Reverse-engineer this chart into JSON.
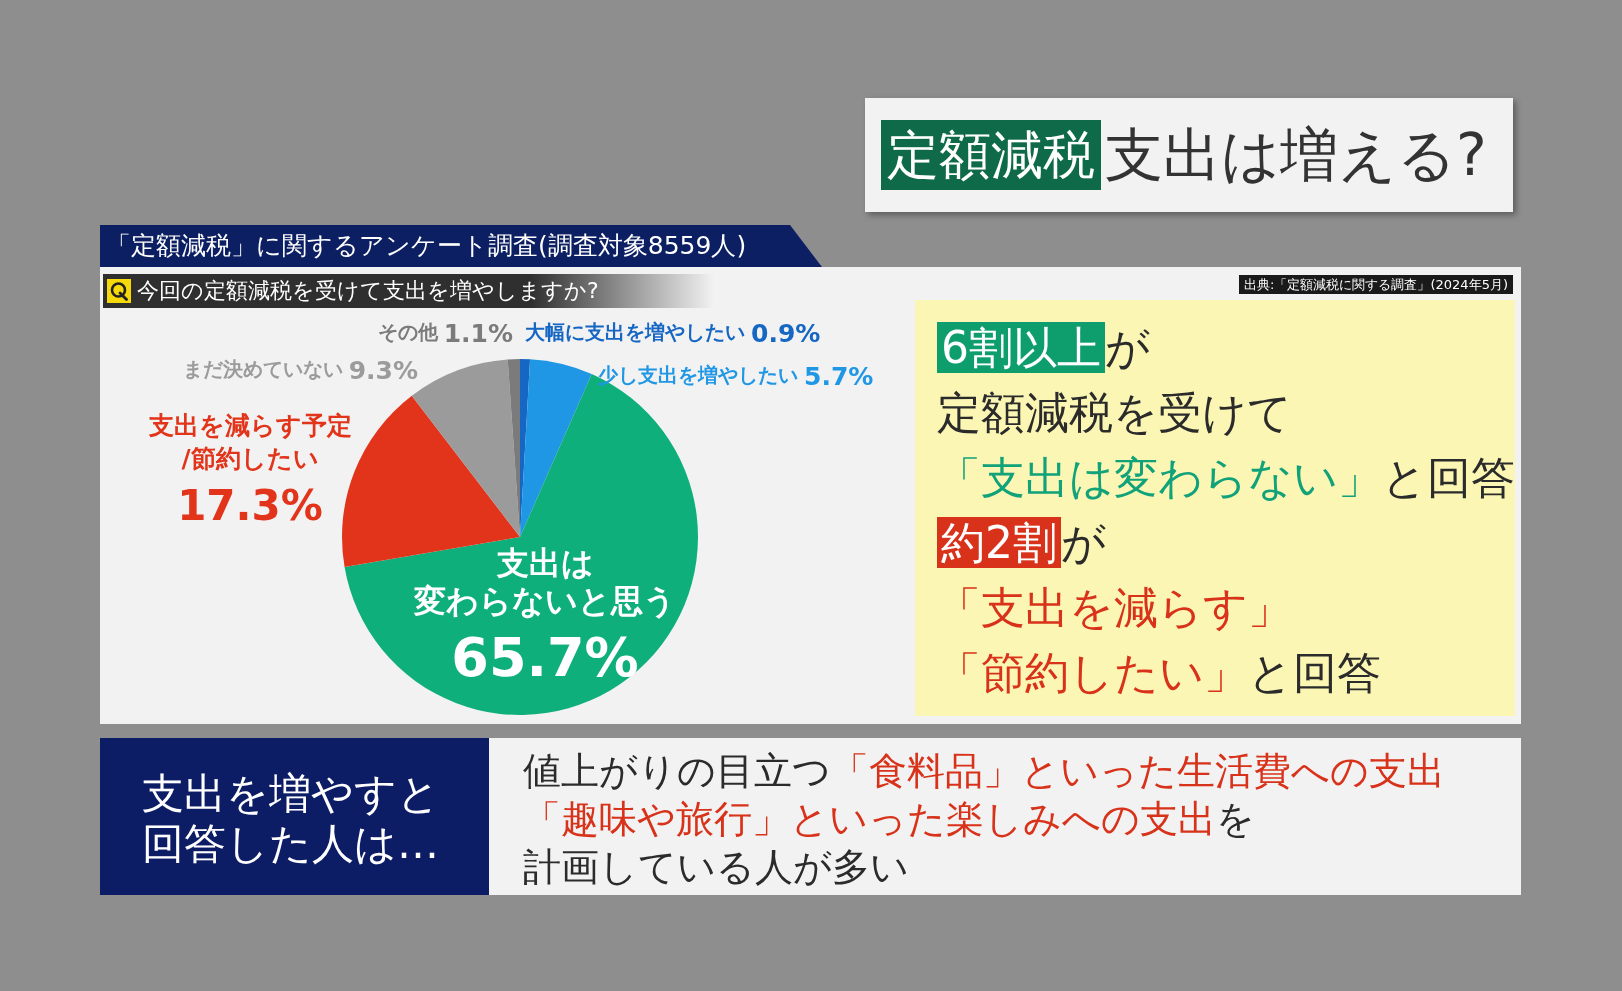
{
  "chart_data": {
    "type": "pie",
    "title": "「定額減税」に関するアンケート調査(調査対象8559人)",
    "subtitle": "今回の定額減税を受けて支出を増やしますか?",
    "categories": [
      "大幅に支出を増やしたい",
      "少し支出を増やしたい",
      "支出は変わらないと思う",
      "支出を減らす予定/節約したい",
      "まだ決めていない",
      "その他"
    ],
    "values": [
      0.9,
      5.7,
      65.7,
      17.3,
      9.3,
      1.1
    ],
    "value_labels": [
      "0.9%",
      "5.7%",
      "65.7%",
      "17.3%",
      "9.3%",
      "1.1%"
    ],
    "colors": [
      "#1666c4",
      "#1f97e5",
      "#0eaf7b",
      "#e2341a",
      "#9b9b9b",
      "#7b7b7b"
    ],
    "annotations": [
      "定額減税",
      "支出は増える?",
      "出典:「定額減税に関する調査」(2024年5月)",
      "6割以上",
      "が",
      "定額減税を受けて",
      "「支出は変わらない」",
      "と回答",
      "約2割",
      "が",
      "「支出を減らす」",
      "「節約したい」",
      "と回答",
      "支出を増やすと",
      "回答した人は…",
      "値上がりの目立つ",
      "「食料品」といった生活費への支出",
      "「趣味や旅行」といった楽しみへの支出",
      "を",
      "計画している人が多い"
    ]
  }
}
